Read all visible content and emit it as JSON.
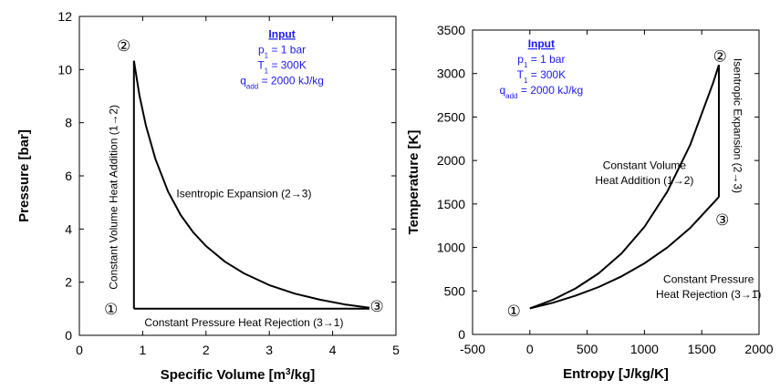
{
  "chart_data": [
    {
      "type": "line",
      "xlabel_main": "Specific Volume [m",
      "xlabel_sup": "3",
      "xlabel_tail": "/kg]",
      "ylabel": "Pressure [bar]",
      "xlim": [
        0,
        5
      ],
      "ylim": [
        0,
        12
      ],
      "x_ticks": [
        "0",
        "1",
        "2",
        "3",
        "4",
        "5"
      ],
      "y_ticks": [
        "0",
        "2",
        "4",
        "6",
        "8",
        "10",
        "12"
      ],
      "grid": false,
      "series": [
        {
          "segment": "1-2",
          "x": [
            0.861,
            0.861
          ],
          "y": [
            1,
            10.33
          ]
        },
        {
          "segment": "2-3",
          "x": [
            0.861,
            0.95,
            1.05,
            1.2,
            1.4,
            1.6,
            1.8,
            2.0,
            2.3,
            2.6,
            3.0,
            3.4,
            3.8,
            4.2,
            4.58
          ],
          "y": [
            10.33,
            9.02,
            7.9,
            6.64,
            5.41,
            4.53,
            3.87,
            3.36,
            2.77,
            2.33,
            1.89,
            1.57,
            1.34,
            1.16,
            1.04
          ]
        },
        {
          "segment": "3-1",
          "x": [
            4.58,
            0.861
          ],
          "y": [
            1.0,
            1.0
          ]
        }
      ],
      "annotations": [
        {
          "text": "Constant Volume Heat Addition (1→2)",
          "x": 0.6,
          "y": 5.2,
          "rotate": -90
        },
        {
          "text": "Isentropic Expansion (2→3)",
          "x": 2.6,
          "y": 5.2
        },
        {
          "text": "Constant Pressure Heat Rejection (3→1)",
          "x": 2.6,
          "y": 0.35
        }
      ],
      "points": [
        {
          "label": "①",
          "x": 0.5,
          "y": 1.0
        },
        {
          "label": "②",
          "x": 0.7,
          "y": 10.9
        },
        {
          "label": "③",
          "x": 4.7,
          "y": 1.1
        }
      ],
      "input_box": {
        "x": 3.2,
        "y": 11.2,
        "title": "Input",
        "p_line": [
          "p",
          "1",
          " = 1 bar"
        ],
        "t_line": [
          "T",
          "1",
          " = 300K"
        ],
        "q_line": [
          "q",
          "add",
          " = 2000 kJ/kg"
        ]
      }
    },
    {
      "type": "line",
      "xlabel": "Entropy [J/kg/K]",
      "ylabel": "Temperature [K]",
      "xlim": [
        -500,
        2000
      ],
      "ylim": [
        0,
        3500
      ],
      "x_ticks": [
        "-500",
        "0",
        "500",
        "1000",
        "1500",
        "2000"
      ],
      "y_ticks": [
        "0",
        "500",
        "1000",
        "1500",
        "2000",
        "2500",
        "3000",
        "3500"
      ],
      "grid": false,
      "series": [
        {
          "segment": "1-2",
          "x": [
            0,
            200,
            400,
            600,
            800,
            1000,
            1200,
            1400,
            1600,
            1650
          ],
          "y": [
            300,
            398,
            529,
            702,
            932,
            1237,
            1643,
            2181,
            2895,
            3100
          ]
        },
        {
          "segment": "2-3",
          "x": [
            1650,
            1650
          ],
          "y": [
            3100,
            1580
          ]
        },
        {
          "segment": "3-1",
          "x": [
            1650,
            1400,
            1200,
            1000,
            800,
            600,
            400,
            200,
            0
          ],
          "y": [
            1580,
            1225,
            1000,
            817,
            668,
            545,
            446,
            364,
            300
          ]
        }
      ],
      "annotations": [
        {
          "text": "Constant Volume",
          "x": 1000,
          "y": 1900
        },
        {
          "text": "Heat Addition (1→2)",
          "x": 1000,
          "y": 1730
        },
        {
          "text": "Isentropic Expansion (2→3)",
          "x": 1780,
          "y": 2400,
          "rotate": 90
        },
        {
          "text": "Constant Pressure",
          "x": 1560,
          "y": 590
        },
        {
          "text": "Heat Rejection (3→1)",
          "x": 1560,
          "y": 420
        }
      ],
      "points": [
        {
          "label": "①",
          "x": -140,
          "y": 270
        },
        {
          "label": "②",
          "x": 1660,
          "y": 3200
        },
        {
          "label": "③",
          "x": 1680,
          "y": 1320
        }
      ],
      "input_box": {
        "x": 100,
        "y": 3300,
        "title": "Input",
        "p_line": [
          "p",
          "1",
          " = 1 bar"
        ],
        "t_line": [
          "T",
          "1",
          " = 300K"
        ],
        "q_line": [
          "q",
          "add",
          " = 2000 kJ/kg"
        ]
      }
    }
  ]
}
